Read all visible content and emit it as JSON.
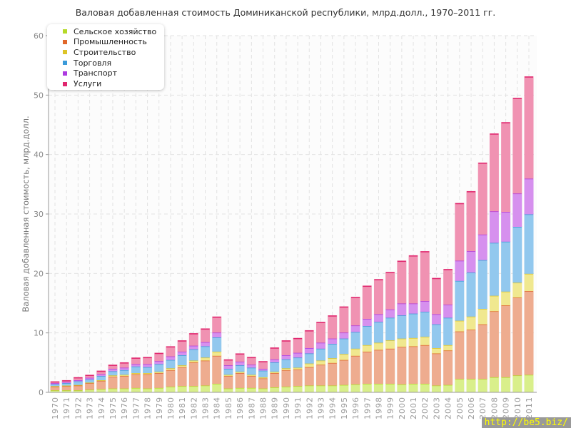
{
  "chart_data": {
    "type": "bar",
    "stacked": true,
    "title": "Валовая добавленная стоимость Доминиканской республики, млрд.долл., 1970–2011 гг.",
    "xlabel": "",
    "ylabel": "Валовая добавленная стоимость, млрд.долл.",
    "ylim": [
      0,
      60
    ],
    "yticks": [
      0,
      10,
      20,
      30,
      40,
      50,
      60
    ],
    "grid": true,
    "legend_position": "top-left",
    "categories": [
      "1970",
      "1971",
      "1972",
      "1973",
      "1974",
      "1975",
      "1976",
      "1977",
      "1978",
      "1979",
      "1980",
      "1981",
      "1982",
      "1983",
      "1984",
      "1985",
      "1986",
      "1987",
      "1988",
      "1989",
      "1990",
      "1991",
      "1992",
      "1993",
      "1994",
      "1995",
      "1996",
      "1997",
      "1998",
      "1999",
      "2000",
      "2001",
      "2002",
      "2003",
      "2004",
      "2005",
      "2006",
      "2007",
      "2008",
      "2009",
      "2010",
      "2011"
    ],
    "series": [
      {
        "name": "Сельское хозяйство",
        "color": "#b5d928",
        "fill": "#d9ef8b",
        "values": [
          0.4,
          0.4,
          0.4,
          0.5,
          0.6,
          0.7,
          0.7,
          0.8,
          0.7,
          0.8,
          1.0,
          1.1,
          1.1,
          1.2,
          1.5,
          0.7,
          0.8,
          0.8,
          0.7,
          0.9,
          1.0,
          1.1,
          1.2,
          1.2,
          1.2,
          1.3,
          1.4,
          1.5,
          1.5,
          1.5,
          1.4,
          1.5,
          1.5,
          1.2,
          1.3,
          2.3,
          2.3,
          2.3,
          2.6,
          2.6,
          2.9,
          3.0
        ]
      },
      {
        "name": "Промышленность",
        "color": "#e0672a",
        "fill": "#eeac8f",
        "values": [
          0.6,
          0.7,
          0.8,
          1.1,
          1.4,
          2.0,
          2.1,
          2.3,
          2.4,
          2.5,
          2.8,
          3.2,
          4.0,
          4.2,
          4.7,
          2.1,
          2.5,
          2.0,
          1.7,
          2.4,
          2.8,
          2.8,
          3.1,
          3.5,
          3.8,
          4.2,
          4.8,
          5.4,
          5.7,
          5.9,
          6.3,
          6.3,
          6.5,
          5.4,
          5.8,
          8.0,
          8.3,
          9.2,
          11.1,
          12.1,
          13.1,
          14.1
        ]
      },
      {
        "name": "Строительство",
        "color": "#dcc427",
        "fill": "#f0e88f",
        "values": [
          0.1,
          0.1,
          0.1,
          0.1,
          0.1,
          0.2,
          0.2,
          0.2,
          0.2,
          0.2,
          0.3,
          0.3,
          0.3,
          0.5,
          0.7,
          0.2,
          0.2,
          0.2,
          0.2,
          0.2,
          0.3,
          0.3,
          0.6,
          0.7,
          0.8,
          1.0,
          1.2,
          1.1,
          1.2,
          1.4,
          1.4,
          1.4,
          1.4,
          0.9,
          0.9,
          1.8,
          2.2,
          2.6,
          2.6,
          2.3,
          2.5,
          2.9
        ]
      },
      {
        "name": "Торговля",
        "color": "#3a9ad9",
        "fill": "#92c8ee",
        "values": [
          0.3,
          0.4,
          0.6,
          0.5,
          0.7,
          0.7,
          0.8,
          1.1,
          1.0,
          1.3,
          1.4,
          1.7,
          1.9,
          1.9,
          2.4,
          1.0,
          1.1,
          1.2,
          1.1,
          1.6,
          1.5,
          1.7,
          1.7,
          2.0,
          2.4,
          2.6,
          2.8,
          3.2,
          3.5,
          3.8,
          3.9,
          4.1,
          4.2,
          4.0,
          4.6,
          6.7,
          7.4,
          8.2,
          8.9,
          8.4,
          9.4,
          10.0
        ]
      },
      {
        "name": "Транспорт",
        "color": "#ad3ae0",
        "fill": "#d690ee",
        "values": [
          0.2,
          0.2,
          0.2,
          0.3,
          0.3,
          0.4,
          0.4,
          0.4,
          0.5,
          0.5,
          0.6,
          0.6,
          0.6,
          0.7,
          0.8,
          0.6,
          0.6,
          0.5,
          0.3,
          0.5,
          0.7,
          0.8,
          0.9,
          1.0,
          0.9,
          1.0,
          1.1,
          1.2,
          1.3,
          1.4,
          2.0,
          1.7,
          1.8,
          1.7,
          2.2,
          3.4,
          3.6,
          4.3,
          5.3,
          5.0,
          5.6,
          6.0
        ]
      },
      {
        "name": "Услуги",
        "color": "#e0266e",
        "fill": "#f092b2",
        "values": [
          0.2,
          0.2,
          0.4,
          0.4,
          0.5,
          0.6,
          0.8,
          1.0,
          1.1,
          1.3,
          1.6,
          1.8,
          2.0,
          2.2,
          2.6,
          0.9,
          1.3,
          1.2,
          1.2,
          1.9,
          2.4,
          2.4,
          2.9,
          3.4,
          3.8,
          4.3,
          4.7,
          5.5,
          5.8,
          6.2,
          7.1,
          8.0,
          8.3,
          6.0,
          5.9,
          9.6,
          10.0,
          12.0,
          13.0,
          15.0,
          16.0,
          17.1
        ]
      }
    ]
  },
  "watermark": "http://be5.biz/"
}
